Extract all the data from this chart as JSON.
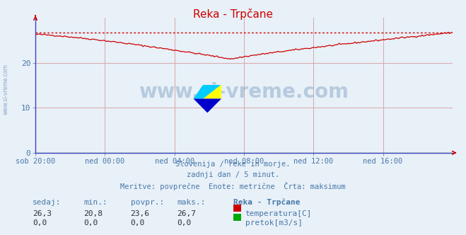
{
  "title": "Reka - Trpčane",
  "bg_color": "#e8f0f8",
  "plot_bg_color": "#e8f0f8",
  "grid_color": "#d8a8a8",
  "xlabel_color": "#4878a8",
  "text_color": "#4878a8",
  "ylabel_max": 30,
  "ylabel_min": 0,
  "yticks": [
    0,
    10,
    20
  ],
  "xtick_labels": [
    "sob 20:00",
    "ned 00:00",
    "ned 04:00",
    "ned 08:00",
    "ned 12:00",
    "ned 16:00"
  ],
  "xtick_positions": [
    0.0,
    0.1667,
    0.3333,
    0.5,
    0.6667,
    0.8333
  ],
  "watermark_text": "www.si-vreme.com",
  "subtitle1": "Slovenija / reke in morje.",
  "subtitle2": "zadnji dan / 5 minut.",
  "subtitle3": "Meritve: povprečne  Enote: metrične  Črta: maksimum",
  "stats_headers": [
    "sedaj:",
    "min.:",
    "povpr.:",
    "maks.:",
    "Reka - Trpčane"
  ],
  "stats_temp": [
    "26,3",
    "20,8",
    "23,6",
    "26,7"
  ],
  "stats_flow": [
    "0,0",
    "0,0",
    "0,0",
    "0,0"
  ],
  "legend_temp": "temperatura[C]",
  "legend_flow": "pretok[m3/s]",
  "temp_color": "#cc0000",
  "flow_color": "#00aa00",
  "max_line_color": "#cc0000",
  "max_value": 26.7,
  "sidebar_text": "www.si-vreme.com",
  "n_points": 288,
  "spine_color": "#4040c0",
  "arrow_color": "#cc0000"
}
